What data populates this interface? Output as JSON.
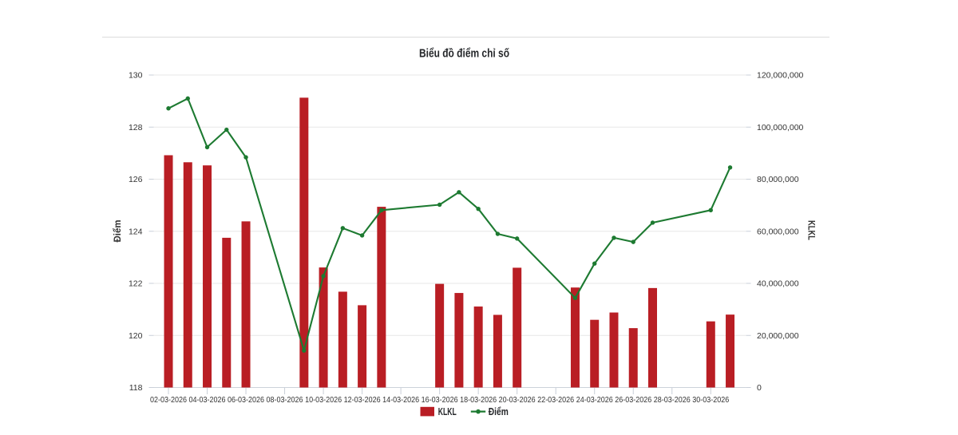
{
  "page": {
    "background": "#ffffff"
  },
  "chart_data": {
    "type": "combo",
    "title": "Biểu đồ điểm chỉ số",
    "categories": [
      "02-03-2026",
      "03-03-2026",
      "04-03-2026",
      "05-03-2026",
      "06-03-2026",
      "09-03-2026",
      "10-03-2026",
      "11-03-2026",
      "12-03-2026",
      "13-03-2026",
      "16-03-2026",
      "17-03-2026",
      "18-03-2026",
      "19-03-2026",
      "20-03-2026",
      "23-03-2026",
      "24-03-2026",
      "25-03-2026",
      "26-03-2026",
      "27-03-2026",
      "30-03-2026",
      "31-03-2026"
    ],
    "series": [
      {
        "name": "KLKL",
        "type": "bar",
        "axis": "right",
        "color": "#b91e24",
        "values": [
          89200000,
          86500000,
          85300000,
          57500000,
          63800000,
          111300000,
          46100000,
          36800000,
          31600000,
          69400000,
          39800000,
          36300000,
          31100000,
          27900000,
          46000000,
          38400000,
          26000000,
          28800000,
          22800000,
          38200000,
          25400000,
          28000000
        ]
      },
      {
        "name": "Điểm",
        "type": "line",
        "axis": "left",
        "color": "#1d7a31",
        "values": [
          128.72,
          129.1,
          127.23,
          127.9,
          126.84,
          119.42,
          122.28,
          124.12,
          123.84,
          124.81,
          125.02,
          125.5,
          124.86,
          123.9,
          123.72,
          121.44,
          122.76,
          123.75,
          123.59,
          124.33,
          124.81,
          126.45
        ]
      }
    ],
    "left_axis": {
      "title": "Điểm",
      "min": 118,
      "max": 130,
      "tick_labels": [
        "118",
        "120",
        "122",
        "124",
        "126",
        "128",
        "130"
      ]
    },
    "right_axis": {
      "title": "KLKL",
      "min": 0,
      "max": 120000000,
      "tick_labels": [
        "0",
        "20,000,000",
        "40,000,000",
        "60,000,000",
        "80,000,000",
        "100,000,000",
        "120,000,000"
      ]
    },
    "x_axis": {
      "tick_labels": [
        "02-03-2026",
        "04-03-2026",
        "06-03-2026",
        "08-03-2026",
        "10-03-2026",
        "12-03-2026",
        "14-03-2026",
        "16-03-2026",
        "18-03-2026",
        "20-03-2026",
        "22-03-2026",
        "24-03-2026",
        "26-03-2026",
        "28-03-2026",
        "30-03-2026"
      ]
    },
    "legend": [
      {
        "label": "KLKL",
        "marker": "square"
      },
      {
        "label": "Điểm",
        "marker": "line-dot"
      }
    ],
    "legend_position": "bottom-center",
    "grid": "horizontal"
  }
}
